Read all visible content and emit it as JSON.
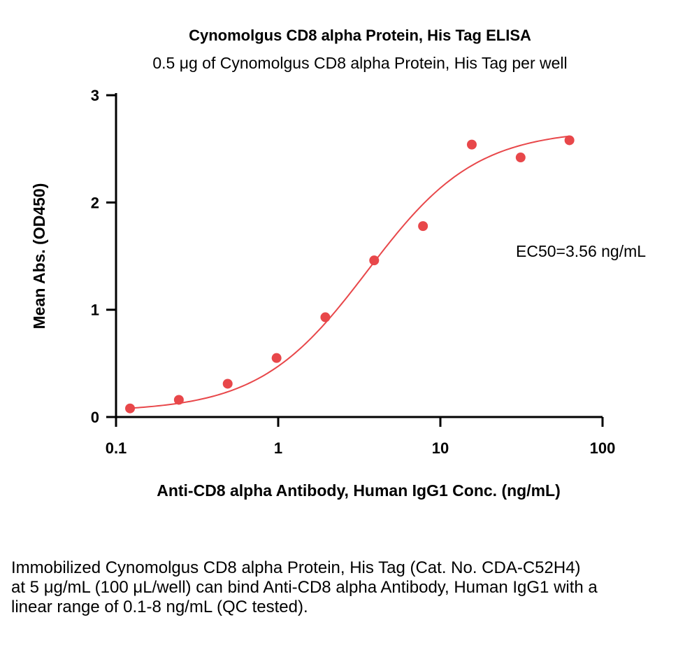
{
  "chart_data": {
    "type": "scatter",
    "title": "Cynomolgus CD8 alpha Protein, His Tag ELISA",
    "subtitle": "0.5 μg of Cynomolgus CD8 alpha Protein, His Tag per well",
    "xlabel": "Anti-CD8 alpha Antibody, Human IgG1 Conc. (ng/mL)",
    "ylabel": "Mean Abs. (OD450)",
    "xscale": "log",
    "xlim": [
      0.1,
      100
    ],
    "ylim": [
      0,
      3
    ],
    "xticks": [
      0.1,
      1,
      10,
      100
    ],
    "xtick_labels": [
      "0.1",
      "1",
      "10",
      "100"
    ],
    "yticks": [
      0,
      1,
      2,
      3
    ],
    "ytick_labels": [
      "0",
      "1",
      "2",
      "3"
    ],
    "grid": false,
    "color": "#e8474a",
    "series": [
      {
        "x": [
          0.122,
          0.244,
          0.488,
          0.977,
          1.953,
          3.906,
          7.813,
          15.625,
          31.25,
          62.5
        ],
        "y": [
          0.08,
          0.16,
          0.31,
          0.55,
          0.93,
          1.46,
          1.78,
          2.54,
          2.42,
          2.58
        ],
        "fit": "4PL sigmoid",
        "fit_params": {
          "bottom": 0.05,
          "top": 2.68,
          "ec50": 3.56,
          "hill": 1.3
        }
      }
    ],
    "annotation": "EC50=3.56 ng/mL"
  },
  "caption": "Immobilized Cynomolgus CD8 alpha Protein, His Tag (Cat. No. CDA-C52H4) at 5 μg/mL (100 μL/well) can bind Anti-CD8 alpha Antibody, Human IgG1 with a linear range of 0.1-8 ng/mL (QC tested)."
}
